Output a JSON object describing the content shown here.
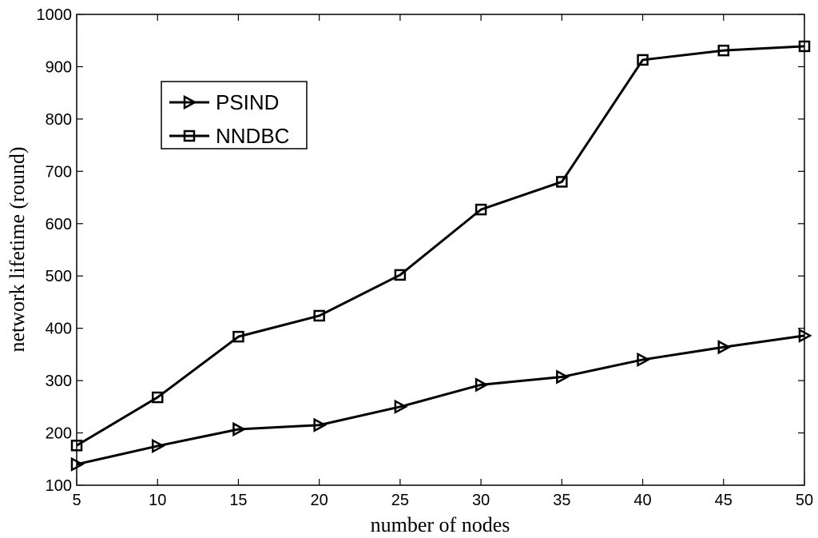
{
  "chart_data": {
    "type": "line",
    "xlabel": "number of nodes",
    "ylabel": "network lifetime (round)",
    "xlim": [
      5,
      50
    ],
    "ylim": [
      100,
      1000
    ],
    "x_ticks": [
      5,
      10,
      15,
      20,
      25,
      30,
      35,
      40,
      45,
      50
    ],
    "y_ticks": [
      100,
      200,
      300,
      400,
      500,
      600,
      700,
      800,
      900,
      1000
    ],
    "grid": false,
    "legend_position": "top-left",
    "x": [
      5,
      10,
      15,
      20,
      25,
      30,
      35,
      40,
      45,
      50
    ],
    "series": [
      {
        "name": "PSIND",
        "marker": "triangle-right",
        "color": "#000000",
        "values": [
          140,
          175,
          207,
          215,
          250,
          292,
          307,
          340,
          364,
          386
        ]
      },
      {
        "name": "NNDBC",
        "marker": "square",
        "color": "#000000",
        "values": [
          176,
          268,
          384,
          424,
          502,
          627,
          680,
          913,
          931,
          939
        ]
      }
    ]
  }
}
